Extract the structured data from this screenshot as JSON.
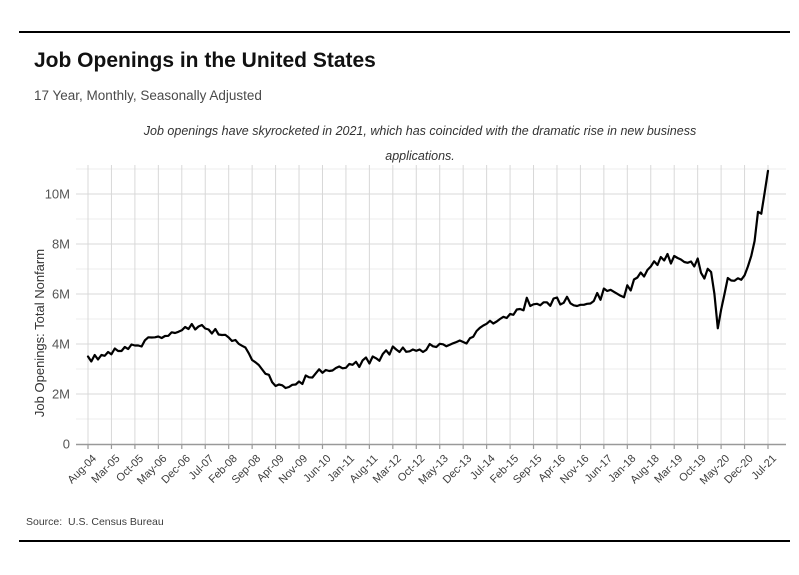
{
  "header": {
    "title": "Job Openings in the United States",
    "subtitle": "17 Year, Monthly, Seasonally Adjusted"
  },
  "annotation": {
    "line1": "Job openings have skyrocketed in 2021, which has coincided with the dramatic rise in new business",
    "line2": "applications."
  },
  "source": "Source:  U.S. Census Bureau",
  "colors": {
    "line": "#000000",
    "grid_major": "#d8d8d8",
    "grid_minor": "#ededed",
    "axis": "#999999",
    "tick_label": "#3d3d3d",
    "ytick_label": "#555555",
    "axis_title": "#333333",
    "rule": "#000000"
  },
  "chart_data": {
    "type": "line",
    "title": "Job Openings in the United States",
    "subtitle": "17 Year, Monthly, Seasonally Adjusted",
    "xlabel": "",
    "ylabel": "Job Openings: Total Nonfarm",
    "unit": "millions",
    "frequency": "monthly",
    "x_start": "Aug-04",
    "x_end": "Jul-21",
    "ylim": [
      0,
      11.2
    ],
    "grid": "on",
    "legend": "none",
    "ytick_values": [
      0,
      2,
      4,
      6,
      8,
      10
    ],
    "ytick_labels": [
      "0",
      "2M",
      "4M",
      "6M",
      "8M",
      "10M"
    ],
    "xtick_every_n_months": 7,
    "xtick_labels": [
      "Aug-04",
      "Mar-05",
      "Oct-05",
      "May-06",
      "Dec-06",
      "Jul-07",
      "Feb-08",
      "Sep-08",
      "Apr-09",
      "Nov-09",
      "Jun-10",
      "Jan-11",
      "Aug-11",
      "Mar-12",
      "Oct-12",
      "May-13",
      "Dec-13",
      "Jul-14",
      "Feb-15",
      "Sep-15",
      "Apr-16",
      "Nov-16",
      "Jun-17",
      "Jan-18",
      "Aug-18",
      "Mar-19",
      "Oct-19",
      "May-20",
      "Dec-20",
      "Jul-21"
    ],
    "values": [
      3.5,
      3.3,
      3.56,
      3.38,
      3.56,
      3.53,
      3.68,
      3.59,
      3.82,
      3.72,
      3.72,
      3.88,
      3.8,
      3.98,
      3.94,
      3.94,
      3.9,
      4.15,
      4.27,
      4.26,
      4.27,
      4.3,
      4.24,
      4.32,
      4.33,
      4.47,
      4.44,
      4.49,
      4.55,
      4.68,
      4.6,
      4.8,
      4.58,
      4.7,
      4.76,
      4.62,
      4.58,
      4.42,
      4.6,
      4.38,
      4.36,
      4.37,
      4.26,
      4.12,
      4.16,
      4.01,
      3.93,
      3.86,
      3.63,
      3.36,
      3.27,
      3.16,
      2.98,
      2.81,
      2.77,
      2.47,
      2.32,
      2.38,
      2.35,
      2.24,
      2.28,
      2.37,
      2.38,
      2.5,
      2.4,
      2.74,
      2.67,
      2.66,
      2.83,
      2.99,
      2.85,
      2.96,
      2.92,
      2.94,
      3.04,
      3.1,
      3.03,
      3.05,
      3.2,
      3.17,
      3.29,
      3.08,
      3.35,
      3.46,
      3.22,
      3.5,
      3.43,
      3.33,
      3.6,
      3.75,
      3.58,
      3.9,
      3.78,
      3.68,
      3.86,
      3.69,
      3.71,
      3.78,
      3.73,
      3.78,
      3.68,
      3.77,
      4.0,
      3.91,
      3.88,
      4.01,
      3.99,
      3.91,
      3.97,
      4.03,
      4.08,
      4.14,
      4.08,
      4.02,
      4.23,
      4.29,
      4.52,
      4.65,
      4.74,
      4.81,
      4.93,
      4.82,
      4.9,
      5.0,
      5.09,
      5.04,
      5.2,
      5.17,
      5.38,
      5.4,
      5.35,
      5.85,
      5.52,
      5.59,
      5.61,
      5.55,
      5.67,
      5.67,
      5.53,
      5.82,
      5.86,
      5.58,
      5.65,
      5.89,
      5.63,
      5.55,
      5.52,
      5.57,
      5.57,
      5.61,
      5.62,
      5.72,
      6.04,
      5.77,
      6.22,
      6.12,
      6.17,
      6.09,
      6.01,
      5.93,
      5.87,
      6.35,
      6.14,
      6.58,
      6.66,
      6.86,
      6.7,
      6.96,
      7.1,
      7.31,
      7.16,
      7.48,
      7.34,
      7.6,
      7.22,
      7.52,
      7.44,
      7.38,
      7.28,
      7.25,
      7.3,
      7.1,
      7.42,
      6.85,
      6.62,
      7.01,
      6.88,
      6.01,
      4.63,
      5.37,
      6.0,
      6.64,
      6.54,
      6.53,
      6.63,
      6.57,
      6.75,
      7.1,
      7.53,
      8.12,
      9.29,
      9.21,
      10.07,
      10.93
    ]
  }
}
